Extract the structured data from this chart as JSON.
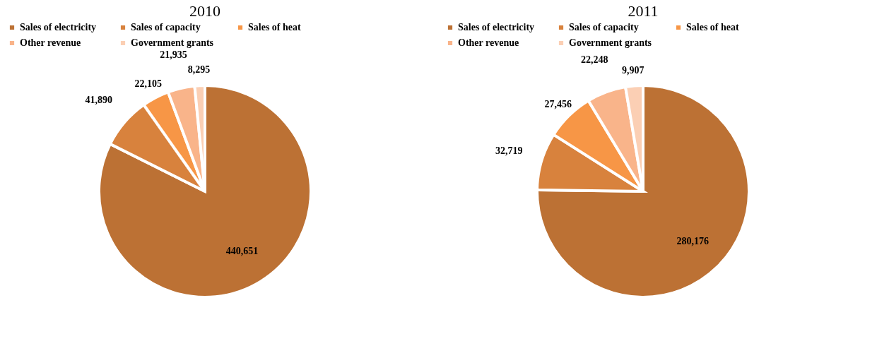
{
  "chart_data": [
    {
      "type": "pie",
      "title": "2010",
      "categories": [
        "Sales of electricity",
        "Sales of capacity",
        "Sales of heat",
        "Other revenue",
        "Government grants"
      ],
      "values": [
        440651,
        41890,
        22105,
        21935,
        8295
      ],
      "colors": [
        "#bc7134",
        "#d8823d",
        "#f79646",
        "#f9b48a",
        "#fbcfb4"
      ],
      "value_labels": [
        "440,651",
        "41,890",
        "22,105",
        "21,935",
        "8,295"
      ],
      "legend": "top"
    },
    {
      "type": "pie",
      "title": "2011",
      "categories": [
        "Sales of electricity",
        "Sales of capacity",
        "Sales of heat",
        "Other revenue",
        "Government grants"
      ],
      "values": [
        280176,
        32719,
        27456,
        22248,
        9907
      ],
      "colors": [
        "#bc7134",
        "#d8823d",
        "#f79646",
        "#f9b48a",
        "#fbcfb4"
      ],
      "value_labels": [
        "280,176",
        "32,719",
        "27,456",
        "22,248",
        "9,907"
      ],
      "legend": "top"
    }
  ]
}
